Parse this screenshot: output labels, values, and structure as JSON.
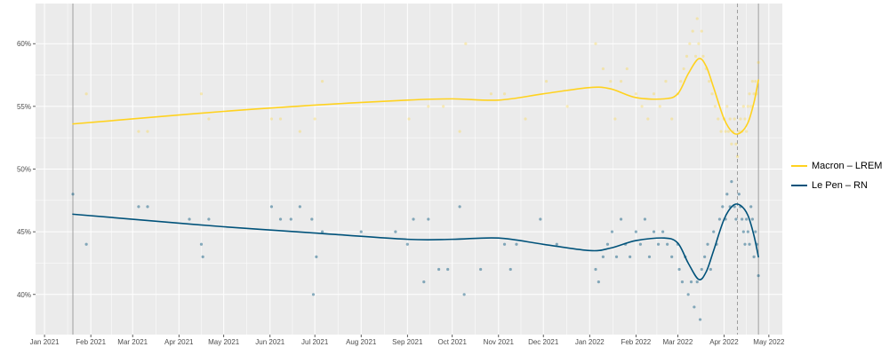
{
  "colors": {
    "macron": "#FFD21F",
    "lepen": "#00527A",
    "panel": "#EBEBEB",
    "grid": "#FFFFFF"
  },
  "chart_data": {
    "type": "scatter",
    "title": "",
    "xlabel": "",
    "ylabel": "",
    "ylim": [
      36.8,
      63.2
    ],
    "xlim": [
      "2020-12-26",
      "2022-05-10"
    ],
    "grid": true,
    "legend_position": "right",
    "x_ticks": [
      {
        "date": "2021-01-01",
        "label": "Jan 2021"
      },
      {
        "date": "2021-02-01",
        "label": "Feb 2021"
      },
      {
        "date": "2021-03-01",
        "label": "Mar 2021"
      },
      {
        "date": "2021-04-01",
        "label": "Apr 2021"
      },
      {
        "date": "2021-05-01",
        "label": "May 2021"
      },
      {
        "date": "2021-06-01",
        "label": "Jun 2021"
      },
      {
        "date": "2021-07-01",
        "label": "Jul 2021"
      },
      {
        "date": "2021-08-01",
        "label": "Aug 2021"
      },
      {
        "date": "2021-09-01",
        "label": "Sep 2021"
      },
      {
        "date": "2021-10-01",
        "label": "Oct 2021"
      },
      {
        "date": "2021-11-01",
        "label": "Nov 2021"
      },
      {
        "date": "2021-12-01",
        "label": "Dec 2021"
      },
      {
        "date": "2022-01-01",
        "label": "Jan 2022"
      },
      {
        "date": "2022-02-01",
        "label": "Feb 2022"
      },
      {
        "date": "2022-03-01",
        "label": "Mar 2022"
      },
      {
        "date": "2022-04-01",
        "label": "Apr 2022"
      },
      {
        "date": "2022-05-01",
        "label": "May 2022"
      }
    ],
    "y_ticks": [
      {
        "value": 40,
        "label": "40%"
      },
      {
        "value": 45,
        "label": "45%"
      },
      {
        "value": 50,
        "label": "50%"
      },
      {
        "value": 55,
        "label": "55%"
      },
      {
        "value": 60,
        "label": "60%"
      }
    ],
    "reference_lines": [
      {
        "date": "2021-01-20",
        "style": "solid"
      },
      {
        "date": "2022-04-10",
        "style": "dashed"
      },
      {
        "date": "2022-04-24",
        "style": "solid"
      }
    ],
    "series": [
      {
        "name": "Macron – LREM",
        "color": "#FFD21F",
        "trend": [
          [
            "2021-01-20",
            53.6
          ],
          [
            "2021-03-01",
            54.0
          ],
          [
            "2021-05-01",
            54.6
          ],
          [
            "2021-07-01",
            55.1
          ],
          [
            "2021-09-01",
            55.5
          ],
          [
            "2021-10-01",
            55.6
          ],
          [
            "2021-11-01",
            55.5
          ],
          [
            "2021-12-01",
            56.0
          ],
          [
            "2022-01-01",
            56.5
          ],
          [
            "2022-01-15",
            56.4
          ],
          [
            "2022-02-01",
            55.7
          ],
          [
            "2022-02-20",
            55.6
          ],
          [
            "2022-03-01",
            56.0
          ],
          [
            "2022-03-08",
            57.6
          ],
          [
            "2022-03-15",
            58.8
          ],
          [
            "2022-03-20",
            58.2
          ],
          [
            "2022-03-25",
            56.5
          ],
          [
            "2022-04-01",
            54.0
          ],
          [
            "2022-04-07",
            52.9
          ],
          [
            "2022-04-12",
            52.9
          ],
          [
            "2022-04-17",
            53.7
          ],
          [
            "2022-04-21",
            55.3
          ],
          [
            "2022-04-24",
            57.1
          ]
        ],
        "points": [
          [
            "2021-01-29",
            56.0
          ],
          [
            "2021-03-05",
            53.0
          ],
          [
            "2021-03-11",
            53.0
          ],
          [
            "2021-04-16",
            56.0
          ],
          [
            "2021-04-21",
            54.0
          ],
          [
            "2021-06-02",
            54.0
          ],
          [
            "2021-06-08",
            54.0
          ],
          [
            "2021-06-21",
            53.0
          ],
          [
            "2021-07-01",
            54.0
          ],
          [
            "2021-07-06",
            57.0
          ],
          [
            "2021-09-02",
            54.0
          ],
          [
            "2021-09-15",
            55.0
          ],
          [
            "2021-09-25",
            55.0
          ],
          [
            "2021-10-06",
            53.0
          ],
          [
            "2021-10-10",
            60.0
          ],
          [
            "2021-10-27",
            56.0
          ],
          [
            "2021-11-05",
            56.0
          ],
          [
            "2021-11-19",
            54.0
          ],
          [
            "2021-12-03",
            57.0
          ],
          [
            "2021-12-17",
            55.0
          ],
          [
            "2022-01-05",
            60.0
          ],
          [
            "2022-01-10",
            58.0
          ],
          [
            "2022-01-15",
            57.0
          ],
          [
            "2022-01-18",
            54.0
          ],
          [
            "2022-01-22",
            57.0
          ],
          [
            "2022-01-26",
            58.0
          ],
          [
            "2022-02-01",
            56.0
          ],
          [
            "2022-02-05",
            55.0
          ],
          [
            "2022-02-09",
            54.0
          ],
          [
            "2022-02-13",
            56.0
          ],
          [
            "2022-02-17",
            55.0
          ],
          [
            "2022-02-21",
            57.0
          ],
          [
            "2022-02-25",
            54.0
          ],
          [
            "2022-03-01",
            56.0
          ],
          [
            "2022-03-03",
            57.0
          ],
          [
            "2022-03-05",
            58.0
          ],
          [
            "2022-03-07",
            59.0
          ],
          [
            "2022-03-09",
            60.0
          ],
          [
            "2022-03-11",
            61.0
          ],
          [
            "2022-03-13",
            59.0
          ],
          [
            "2022-03-14",
            62.0
          ],
          [
            "2022-03-15",
            60.0
          ],
          [
            "2022-03-17",
            61.0
          ],
          [
            "2022-03-18",
            59.0
          ],
          [
            "2022-03-20",
            58.0
          ],
          [
            "2022-03-22",
            57.0
          ],
          [
            "2022-03-24",
            56.0
          ],
          [
            "2022-03-26",
            55.0
          ],
          [
            "2022-03-28",
            54.0
          ],
          [
            "2022-03-30",
            53.0
          ],
          [
            "2022-04-01",
            54.0
          ],
          [
            "2022-04-02",
            53.0
          ],
          [
            "2022-04-03",
            55.0
          ],
          [
            "2022-04-04",
            53.0
          ],
          [
            "2022-04-05",
            54.0
          ],
          [
            "2022-04-06",
            52.0
          ],
          [
            "2022-04-07",
            53.0
          ],
          [
            "2022-04-08",
            54.0
          ],
          [
            "2022-04-09",
            52.0
          ],
          [
            "2022-04-10",
            51.0
          ],
          [
            "2022-04-11",
            53.0
          ],
          [
            "2022-04-12",
            54.0
          ],
          [
            "2022-04-13",
            53.0
          ],
          [
            "2022-04-14",
            55.0
          ],
          [
            "2022-04-15",
            54.0
          ],
          [
            "2022-04-16",
            53.0
          ],
          [
            "2022-04-17",
            55.0
          ],
          [
            "2022-04-18",
            56.0
          ],
          [
            "2022-04-19",
            55.0
          ],
          [
            "2022-04-20",
            57.0
          ],
          [
            "2022-04-21",
            56.0
          ],
          [
            "2022-04-22",
            57.0
          ],
          [
            "2022-04-23",
            56.0
          ],
          [
            "2022-04-24",
            58.5
          ]
        ]
      },
      {
        "name": "Le Pen – RN",
        "color": "#00527A",
        "trend": [
          [
            "2021-01-20",
            46.4
          ],
          [
            "2021-03-01",
            46.0
          ],
          [
            "2021-05-01",
            45.4
          ],
          [
            "2021-07-01",
            44.9
          ],
          [
            "2021-09-01",
            44.4
          ],
          [
            "2021-10-01",
            44.4
          ],
          [
            "2021-11-01",
            44.5
          ],
          [
            "2021-12-01",
            44.0
          ],
          [
            "2022-01-01",
            43.5
          ],
          [
            "2022-01-15",
            43.7
          ],
          [
            "2022-02-01",
            44.3
          ],
          [
            "2022-02-20",
            44.5
          ],
          [
            "2022-03-01",
            44.1
          ],
          [
            "2022-03-08",
            42.5
          ],
          [
            "2022-03-15",
            41.2
          ],
          [
            "2022-03-20",
            41.8
          ],
          [
            "2022-03-25",
            43.5
          ],
          [
            "2022-04-01",
            46.0
          ],
          [
            "2022-04-07",
            47.1
          ],
          [
            "2022-04-12",
            47.1
          ],
          [
            "2022-04-17",
            46.3
          ],
          [
            "2022-04-21",
            44.7
          ],
          [
            "2022-04-24",
            43.0
          ]
        ],
        "points": [
          [
            "2021-01-20",
            48.0
          ],
          [
            "2021-01-29",
            44.0
          ],
          [
            "2021-03-05",
            47.0
          ],
          [
            "2021-03-11",
            47.0
          ],
          [
            "2021-04-08",
            46.0
          ],
          [
            "2021-04-16",
            44.0
          ],
          [
            "2021-04-17",
            43.0
          ],
          [
            "2021-04-21",
            46.0
          ],
          [
            "2021-06-02",
            47.0
          ],
          [
            "2021-06-08",
            46.0
          ],
          [
            "2021-06-15",
            46.0
          ],
          [
            "2021-06-21",
            47.0
          ],
          [
            "2021-06-29",
            46.0
          ],
          [
            "2021-06-30",
            40.0
          ],
          [
            "2021-07-02",
            43.0
          ],
          [
            "2021-07-06",
            45.0
          ],
          [
            "2021-08-01",
            45.0
          ],
          [
            "2021-08-24",
            45.0
          ],
          [
            "2021-09-01",
            44.0
          ],
          [
            "2021-09-05",
            46.0
          ],
          [
            "2021-09-12",
            41.0
          ],
          [
            "2021-09-15",
            46.0
          ],
          [
            "2021-09-22",
            42.0
          ],
          [
            "2021-09-28",
            42.0
          ],
          [
            "2021-10-06",
            47.0
          ],
          [
            "2021-10-09",
            40.0
          ],
          [
            "2021-10-20",
            42.0
          ],
          [
            "2021-11-05",
            44.0
          ],
          [
            "2021-11-09",
            42.0
          ],
          [
            "2021-11-13",
            44.0
          ],
          [
            "2021-11-29",
            46.0
          ],
          [
            "2021-12-10",
            44.0
          ],
          [
            "2022-01-05",
            42.0
          ],
          [
            "2022-01-07",
            41.0
          ],
          [
            "2022-01-10",
            43.0
          ],
          [
            "2022-01-13",
            44.0
          ],
          [
            "2022-01-16",
            45.0
          ],
          [
            "2022-01-19",
            43.0
          ],
          [
            "2022-01-22",
            46.0
          ],
          [
            "2022-01-25",
            44.0
          ],
          [
            "2022-01-28",
            43.0
          ],
          [
            "2022-02-01",
            45.0
          ],
          [
            "2022-02-04",
            44.0
          ],
          [
            "2022-02-07",
            46.0
          ],
          [
            "2022-02-10",
            43.0
          ],
          [
            "2022-02-13",
            45.0
          ],
          [
            "2022-02-16",
            44.0
          ],
          [
            "2022-02-19",
            45.0
          ],
          [
            "2022-02-22",
            44.0
          ],
          [
            "2022-02-25",
            43.0
          ],
          [
            "2022-03-01",
            44.0
          ],
          [
            "2022-03-02",
            42.0
          ],
          [
            "2022-03-04",
            41.0
          ],
          [
            "2022-03-06",
            43.0
          ],
          [
            "2022-03-08",
            40.0
          ],
          [
            "2022-03-10",
            41.0
          ],
          [
            "2022-03-12",
            39.0
          ],
          [
            "2022-03-14",
            41.0
          ],
          [
            "2022-03-16",
            38.0
          ],
          [
            "2022-03-17",
            42.0
          ],
          [
            "2022-03-19",
            43.0
          ],
          [
            "2022-03-21",
            44.0
          ],
          [
            "2022-03-23",
            42.0
          ],
          [
            "2022-03-25",
            45.0
          ],
          [
            "2022-03-27",
            44.0
          ],
          [
            "2022-03-29",
            46.0
          ],
          [
            "2022-03-31",
            47.0
          ],
          [
            "2022-04-02",
            46.0
          ],
          [
            "2022-04-03",
            48.0
          ],
          [
            "2022-04-05",
            47.0
          ],
          [
            "2022-04-06",
            49.0
          ],
          [
            "2022-04-08",
            47.0
          ],
          [
            "2022-04-09",
            46.0
          ],
          [
            "2022-04-11",
            48.0
          ],
          [
            "2022-04-12",
            47.0
          ],
          [
            "2022-04-13",
            46.0
          ],
          [
            "2022-04-14",
            45.0
          ],
          [
            "2022-04-15",
            44.0
          ],
          [
            "2022-04-16",
            46.0
          ],
          [
            "2022-04-17",
            45.0
          ],
          [
            "2022-04-18",
            44.0
          ],
          [
            "2022-04-19",
            47.0
          ],
          [
            "2022-04-20",
            46.0
          ],
          [
            "2022-04-21",
            43.0
          ],
          [
            "2022-04-22",
            45.0
          ],
          [
            "2022-04-23",
            44.0
          ],
          [
            "2022-04-24",
            41.5
          ]
        ]
      }
    ]
  }
}
